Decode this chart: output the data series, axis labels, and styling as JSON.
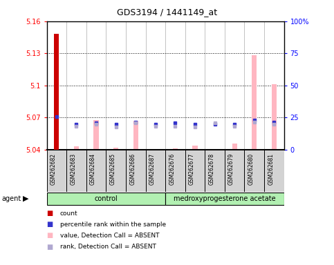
{
  "title": "GDS3194 / 1441149_at",
  "samples": [
    "GSM262682",
    "GSM262683",
    "GSM262684",
    "GSM262685",
    "GSM262686",
    "GSM262687",
    "GSM262676",
    "GSM262677",
    "GSM262678",
    "GSM262679",
    "GSM262680",
    "GSM262681"
  ],
  "red_bar_values": [
    5.148,
    null,
    null,
    null,
    null,
    null,
    null,
    null,
    null,
    null,
    null,
    null
  ],
  "pink_bar_values": [
    null,
    5.043,
    5.068,
    5.042,
    5.067,
    null,
    5.041,
    5.044,
    null,
    5.046,
    5.128,
    5.101
  ],
  "blue_square_values": [
    5.071,
    5.064,
    5.065,
    5.064,
    5.066,
    5.064,
    5.065,
    5.064,
    5.064,
    5.064,
    5.068,
    5.066
  ],
  "pink_square_values": [
    null,
    5.062,
    5.064,
    5.061,
    5.065,
    5.062,
    5.062,
    5.061,
    5.065,
    5.062,
    5.066,
    5.064
  ],
  "ylim": [
    5.04,
    5.16
  ],
  "yticks": [
    5.04,
    5.07,
    5.1,
    5.13,
    5.16
  ],
  "right_yticks": [
    0,
    25,
    50,
    75,
    100
  ],
  "right_ylim": [
    0,
    100
  ],
  "bar_width": 0.25,
  "red_bar_color": "#cc0000",
  "pink_bar_color": "#ffb6c1",
  "blue_sq_color": "#3333cc",
  "pink_sq_color": "#b0a8d0",
  "bg_color": "#d3d3d3",
  "plot_bg_color": "#ffffff",
  "legend_items": [
    "count",
    "percentile rank within the sample",
    "value, Detection Call = ABSENT",
    "rank, Detection Call = ABSENT"
  ],
  "legend_colors": [
    "#cc0000",
    "#3333cc",
    "#ffb6c1",
    "#b0a8d0"
  ],
  "green_light": "#b2f0b2",
  "green_dark_border": "#000000"
}
